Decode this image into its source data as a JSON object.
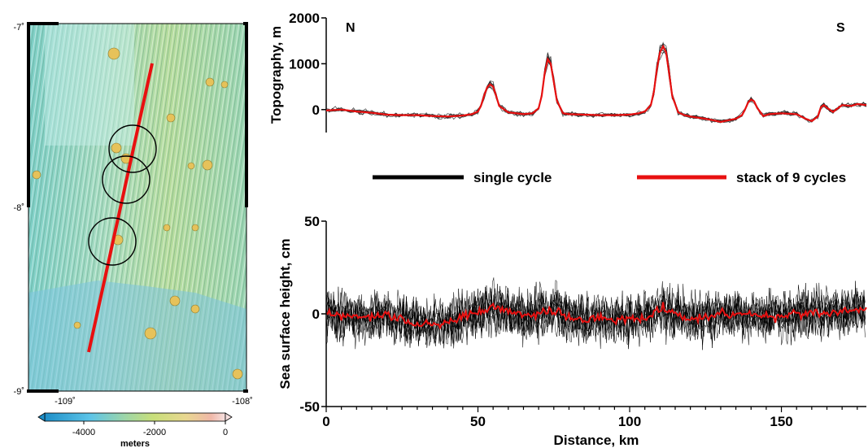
{
  "map": {
    "lat_labels": [
      "-7˚",
      "-8˚",
      "-9˚"
    ],
    "lon_labels": [
      "-109˚",
      "-108˚"
    ],
    "colorbar": {
      "ticks": [
        "-4000",
        "-2000",
        "0"
      ],
      "unit": "meters"
    },
    "colors": {
      "deep": "#5bc6ea",
      "mid": "#9fd39a",
      "shallow": "#e8d98a",
      "peak": "#f0a0a0",
      "track": "#e81010",
      "circle": "#000000"
    }
  },
  "chart_data": [
    {
      "type": "line",
      "ylabel": "Topography, m",
      "xlim": [
        0,
        178
      ],
      "ylim": [
        -500,
        2000
      ],
      "yticks": [
        0,
        1000,
        2000
      ],
      "corner_labels": {
        "left": "N",
        "right": "S"
      },
      "legend": [
        {
          "label": "single cycle",
          "color": "#000000"
        },
        {
          "label": "stack of 9 cycles",
          "color": "#e81010"
        }
      ],
      "series": [
        {
          "name": "stack of 9 cycles",
          "color": "#e81010",
          "x": [
            0,
            5,
            10,
            15,
            20,
            25,
            30,
            35,
            40,
            45,
            48,
            50,
            51,
            52,
            53,
            54,
            55,
            56,
            57,
            60,
            65,
            68,
            70,
            71,
            72,
            73,
            74,
            75,
            76,
            78,
            80,
            85,
            90,
            95,
            100,
            103,
            105,
            107,
            108,
            109,
            110,
            111,
            112,
            113,
            114,
            116,
            118,
            120,
            125,
            128,
            130,
            132,
            135,
            137,
            138,
            139,
            140,
            141,
            142,
            144,
            146,
            150,
            155,
            158,
            160,
            162,
            163,
            164,
            165,
            167,
            170,
            173,
            175,
            178
          ],
          "y": [
            -20,
            0,
            -40,
            -70,
            -110,
            -120,
            -120,
            -140,
            -150,
            -130,
            -100,
            -40,
            80,
            300,
            480,
            550,
            500,
            300,
            80,
            -60,
            -100,
            -80,
            30,
            300,
            800,
            1100,
            1000,
            600,
            200,
            -80,
            -100,
            -110,
            -120,
            -120,
            -110,
            -80,
            -40,
            100,
            400,
            900,
            1250,
            1380,
            1250,
            800,
            300,
            -60,
            -120,
            -150,
            -200,
            -240,
            -270,
            -240,
            -200,
            -120,
            0,
            150,
            220,
            180,
            40,
            -140,
            -100,
            -80,
            -100,
            -200,
            -250,
            -150,
            50,
            100,
            40,
            -50,
            100,
            80,
            120,
            100
          ]
        }
      ]
    },
    {
      "type": "line",
      "xlabel": "Distance, km",
      "ylabel": "Sea surface height, cm",
      "xlim": [
        0,
        178
      ],
      "ylim": [
        -50,
        50
      ],
      "xticks": [
        0,
        50,
        100,
        150
      ],
      "yticks": [
        -50,
        0,
        50
      ],
      "series": [
        {
          "name": "stack of 9 cycles",
          "color": "#e81010",
          "x": [
            0,
            5,
            10,
            15,
            20,
            25,
            30,
            35,
            40,
            45,
            50,
            55,
            60,
            65,
            70,
            75,
            80,
            85,
            90,
            95,
            100,
            105,
            110,
            115,
            120,
            125,
            130,
            135,
            140,
            145,
            150,
            155,
            160,
            165,
            170,
            175,
            178
          ],
          "y": [
            0,
            -1,
            -2,
            -2,
            -1,
            -3,
            -5,
            -6,
            -4,
            -2,
            1,
            4,
            2,
            -1,
            0,
            3,
            -2,
            -4,
            -2,
            -3,
            -3,
            -2,
            3,
            1,
            -3,
            -2,
            0,
            0,
            0,
            -1,
            -2,
            0,
            1,
            0,
            1,
            2,
            2
          ]
        }
      ]
    }
  ]
}
